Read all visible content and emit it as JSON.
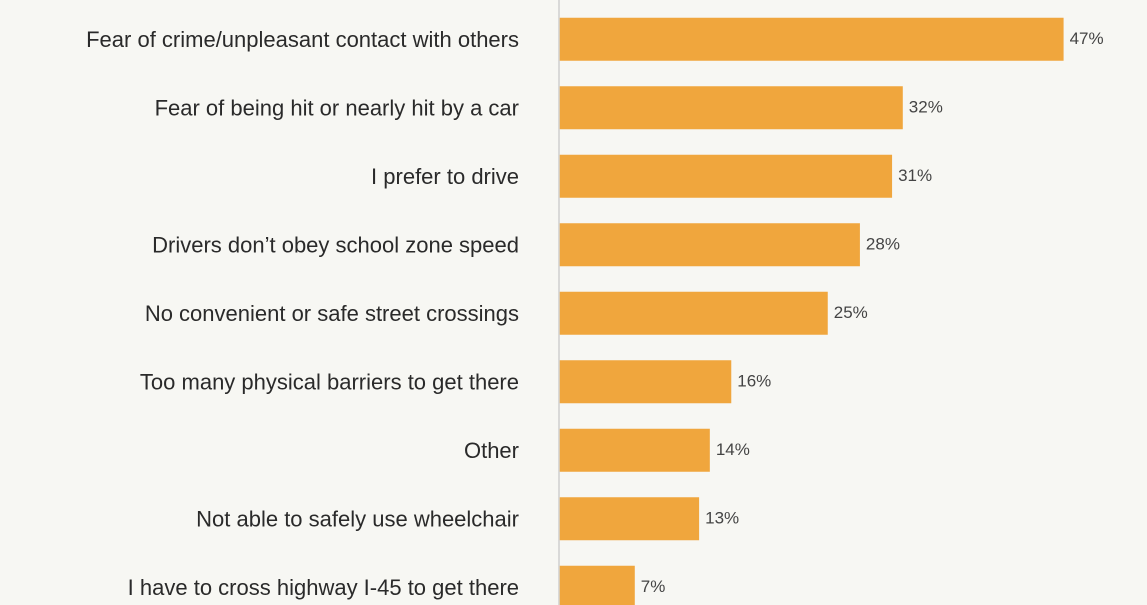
{
  "chart_data": {
    "type": "bar",
    "orientation": "horizontal",
    "categories": [
      "Fear of crime/unpleasant contact with others",
      "Fear of being hit or nearly hit by a car",
      "I prefer to drive",
      "Drivers don’t obey school zone speed",
      "No convenient or safe street crossings",
      "Too many physical barriers to get there",
      "Other",
      "Not able to safely use wheelchair",
      "I have to cross highway I-45 to get there"
    ],
    "values": [
      47,
      32,
      31,
      28,
      25,
      16,
      14,
      13,
      7
    ],
    "value_labels": [
      "47%",
      "32%",
      "31%",
      "28%",
      "25%",
      "16%",
      "14%",
      "13%",
      "7%"
    ],
    "unit": "%",
    "title": "",
    "xlabel": "",
    "ylabel": "",
    "xlim": [
      0,
      50
    ],
    "grid": false,
    "legend": "none",
    "colors": {
      "bar": "#f0a63d",
      "axis": "#cfcfcf",
      "background": "#f7f7f3",
      "label_text": "#2a2a2a",
      "value_text": "#444444"
    }
  }
}
